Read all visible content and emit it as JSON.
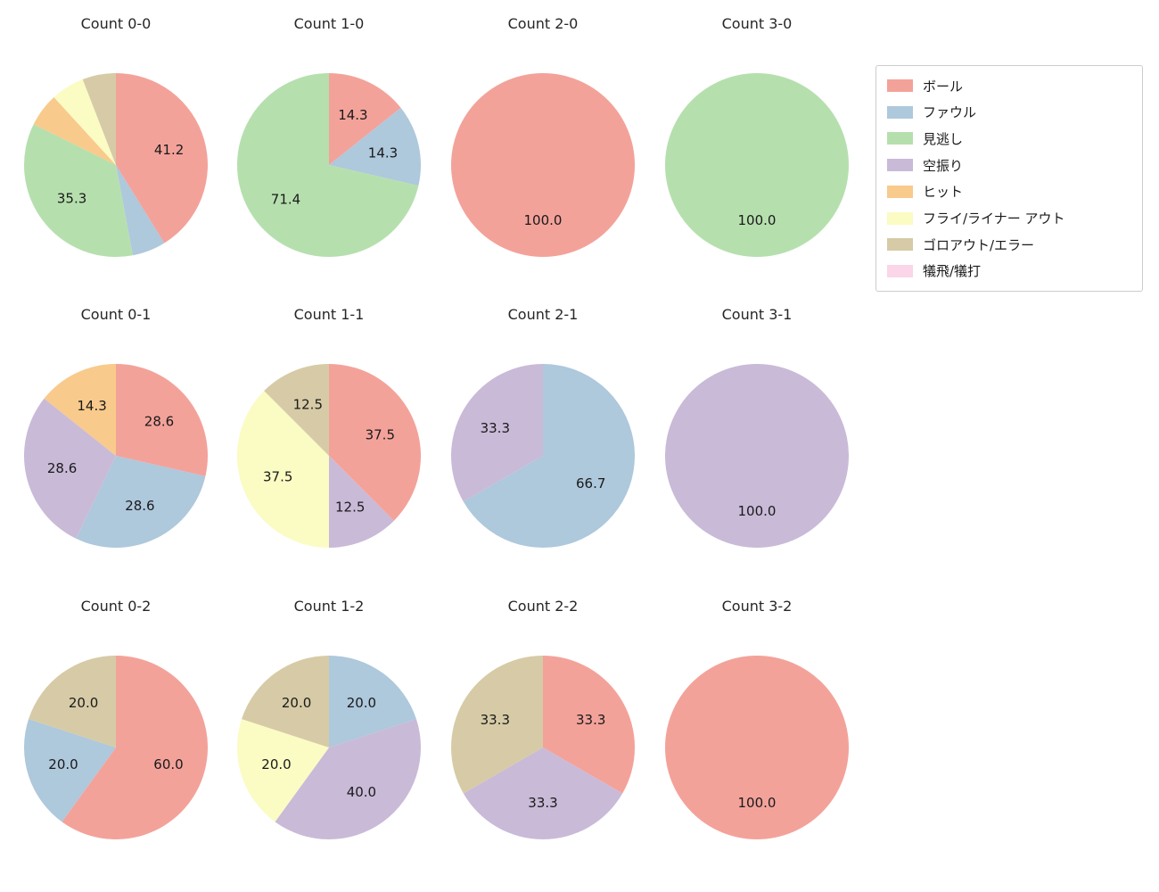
{
  "figure": {
    "background": "#ffffff"
  },
  "layout": {
    "grid": "4x3",
    "start_angle": "top",
    "direction": "clockwise",
    "legend_position": "top-right"
  },
  "legend": {
    "items": [
      {
        "key": "ball",
        "label": "ボール",
        "color": "#f3a29a"
      },
      {
        "key": "foul",
        "label": "ファウル",
        "color": "#aec8dc"
      },
      {
        "key": "called_strike",
        "label": "見逃し",
        "color": "#b6dfae"
      },
      {
        "key": "swinging_strike",
        "label": "空振り",
        "color": "#c9bad8"
      },
      {
        "key": "hit",
        "label": "ヒット",
        "color": "#f8ca8c"
      },
      {
        "key": "fly_liner_out",
        "label": "フライ/ライナー アウト",
        "color": "#fbfbc4"
      },
      {
        "key": "ground_out_error",
        "label": "ゴロアウト/エラー",
        "color": "#d6cba6"
      },
      {
        "key": "sac_fly_bunt",
        "label": "犠飛/犠打",
        "color": "#fad6e8"
      }
    ]
  },
  "chart_data": [
    {
      "type": "pie",
      "title": "Count 0-0",
      "slices": [
        {
          "category": "ボール",
          "key": "ball",
          "value": 41.2,
          "pct_label": "41.2"
        },
        {
          "category": "ファウル",
          "key": "foul",
          "value": 5.9,
          "pct_label": ""
        },
        {
          "category": "見逃し",
          "key": "called_strike",
          "value": 35.3,
          "pct_label": "35.3"
        },
        {
          "category": "ヒット",
          "key": "hit",
          "value": 5.9,
          "pct_label": ""
        },
        {
          "category": "フライ/ライナー アウト",
          "key": "fly_liner_out",
          "value": 5.9,
          "pct_label": ""
        },
        {
          "category": "ゴロアウト/エラー",
          "key": "ground_out_error",
          "value": 5.9,
          "pct_label": ""
        }
      ]
    },
    {
      "type": "pie",
      "title": "Count 1-0",
      "slices": [
        {
          "category": "ボール",
          "key": "ball",
          "value": 14.3,
          "pct_label": "14.3"
        },
        {
          "category": "ファウル",
          "key": "foul",
          "value": 14.3,
          "pct_label": "14.3"
        },
        {
          "category": "見逃し",
          "key": "called_strike",
          "value": 71.4,
          "pct_label": "71.4"
        }
      ]
    },
    {
      "type": "pie",
      "title": "Count 2-0",
      "slices": [
        {
          "category": "ボール",
          "key": "ball",
          "value": 100.0,
          "pct_label": "100.0"
        }
      ]
    },
    {
      "type": "pie",
      "title": "Count 3-0",
      "slices": [
        {
          "category": "見逃し",
          "key": "called_strike",
          "value": 100.0,
          "pct_label": "100.0"
        }
      ]
    },
    {
      "type": "pie",
      "title": "Count 0-1",
      "slices": [
        {
          "category": "ボール",
          "key": "ball",
          "value": 28.6,
          "pct_label": "28.6"
        },
        {
          "category": "ファウル",
          "key": "foul",
          "value": 28.6,
          "pct_label": "28.6"
        },
        {
          "category": "空振り",
          "key": "swinging_strike",
          "value": 28.6,
          "pct_label": "28.6"
        },
        {
          "category": "ヒット",
          "key": "hit",
          "value": 14.3,
          "pct_label": "14.3"
        }
      ]
    },
    {
      "type": "pie",
      "title": "Count 1-1",
      "slices": [
        {
          "category": "ボール",
          "key": "ball",
          "value": 37.5,
          "pct_label": "37.5"
        },
        {
          "category": "空振り",
          "key": "swinging_strike",
          "value": 12.5,
          "pct_label": "12.5"
        },
        {
          "category": "フライ/ライナー アウト",
          "key": "fly_liner_out",
          "value": 37.5,
          "pct_label": "37.5"
        },
        {
          "category": "ゴロアウト/エラー",
          "key": "ground_out_error",
          "value": 12.5,
          "pct_label": "12.5"
        }
      ]
    },
    {
      "type": "pie",
      "title": "Count 2-1",
      "slices": [
        {
          "category": "ファウル",
          "key": "foul",
          "value": 66.7,
          "pct_label": "66.7"
        },
        {
          "category": "空振り",
          "key": "swinging_strike",
          "value": 33.3,
          "pct_label": "33.3"
        }
      ]
    },
    {
      "type": "pie",
      "title": "Count 3-1",
      "slices": [
        {
          "category": "空振り",
          "key": "swinging_strike",
          "value": 100.0,
          "pct_label": "100.0"
        }
      ]
    },
    {
      "type": "pie",
      "title": "Count 0-2",
      "slices": [
        {
          "category": "ボール",
          "key": "ball",
          "value": 60.0,
          "pct_label": "60.0"
        },
        {
          "category": "ファウル",
          "key": "foul",
          "value": 20.0,
          "pct_label": "20.0"
        },
        {
          "category": "ゴロアウト/エラー",
          "key": "ground_out_error",
          "value": 20.0,
          "pct_label": "20.0"
        }
      ]
    },
    {
      "type": "pie",
      "title": "Count 1-2",
      "slices": [
        {
          "category": "ファウル",
          "key": "foul",
          "value": 20.0,
          "pct_label": "20.0"
        },
        {
          "category": "空振り",
          "key": "swinging_strike",
          "value": 40.0,
          "pct_label": "40.0"
        },
        {
          "category": "フライ/ライナー アウト",
          "key": "fly_liner_out",
          "value": 20.0,
          "pct_label": "20.0"
        },
        {
          "category": "ゴロアウト/エラー",
          "key": "ground_out_error",
          "value": 20.0,
          "pct_label": "20.0"
        }
      ]
    },
    {
      "type": "pie",
      "title": "Count 2-2",
      "slices": [
        {
          "category": "ボール",
          "key": "ball",
          "value": 33.3,
          "pct_label": "33.3"
        },
        {
          "category": "空振り",
          "key": "swinging_strike",
          "value": 33.3,
          "pct_label": "33.3"
        },
        {
          "category": "ゴロアウト/エラー",
          "key": "ground_out_error",
          "value": 33.3,
          "pct_label": "33.3"
        }
      ]
    },
    {
      "type": "pie",
      "title": "Count 3-2",
      "slices": [
        {
          "category": "ボール",
          "key": "ball",
          "value": 100.0,
          "pct_label": "100.0"
        }
      ]
    }
  ]
}
